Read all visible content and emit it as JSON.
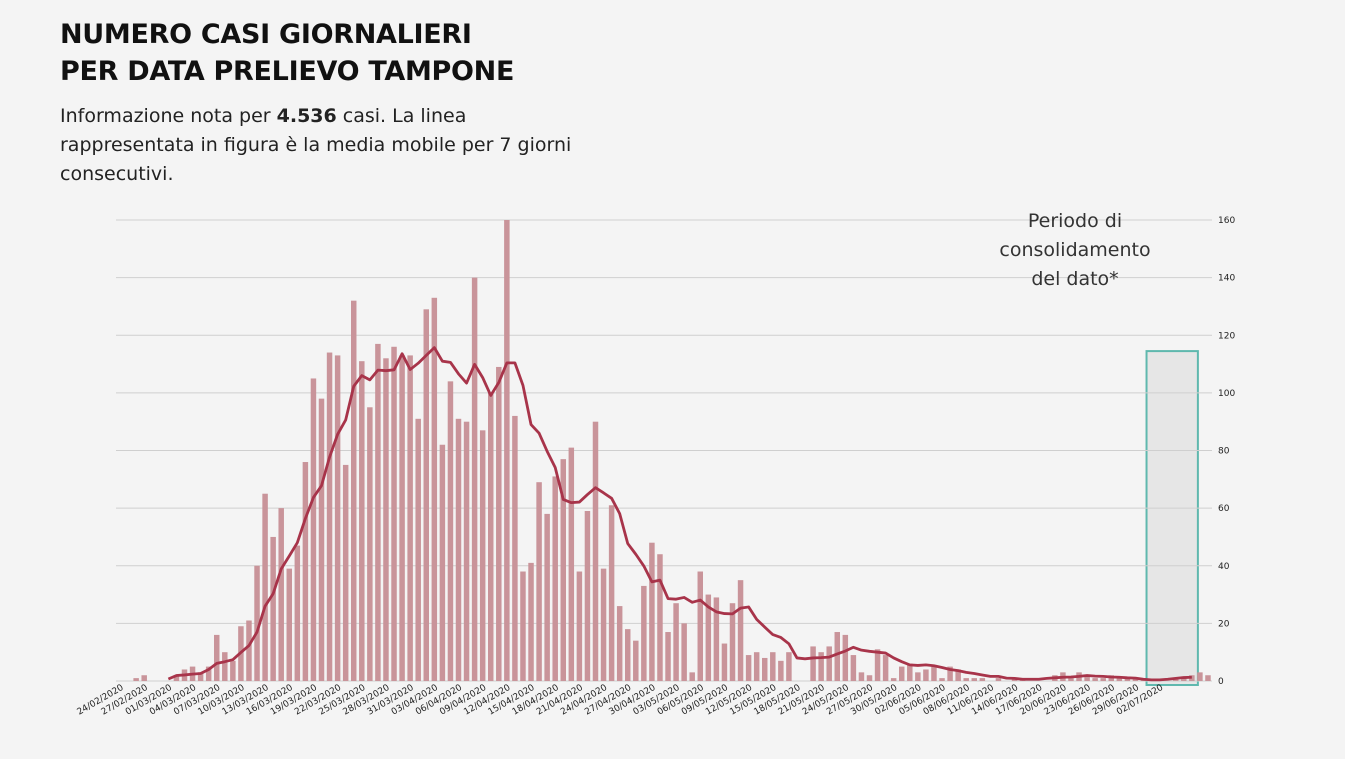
{
  "header": {
    "title_line1": "NUMERO CASI GIORNALIERI",
    "title_line2": "PER DATA PRELIEVO TAMPONE",
    "subtitle_pre": "Informazione nota per ",
    "subtitle_count": "4.536",
    "subtitle_post": "  casi. La linea rappresentata in figura è la media mobile per 7 giorni consecutivi."
  },
  "annotation": {
    "line1": "Periodo di",
    "line2": "consolidamento",
    "line3": "del dato*"
  },
  "colors": {
    "bar": "#c9949a",
    "line": "#a8344a",
    "grid": "#cfcfcf",
    "box_border": "#5fb8ae",
    "box_fill": "#e6e6e6"
  },
  "chart_data": {
    "type": "bar",
    "start_date": "24/02/2020",
    "x_tick_labels": [
      "24/02/2020",
      "27/02/2020",
      "01/03/2020",
      "04/03/2020",
      "07/03/2020",
      "10/03/2020",
      "13/03/2020",
      "16/03/2020",
      "19/03/2020",
      "22/03/2020",
      "25/03/2020",
      "28/03/2020",
      "31/03/2020",
      "03/04/2020",
      "06/04/2020",
      "09/04/2020",
      "12/04/2020",
      "15/04/2020",
      "18/04/2020",
      "21/04/2020",
      "24/04/2020",
      "27/04/2020",
      "30/04/2020",
      "03/05/2020",
      "06/05/2020",
      "09/05/2020",
      "12/05/2020",
      "15/05/2020",
      "18/05/2020",
      "21/05/2020",
      "24/05/2020",
      "27/05/2020",
      "30/05/2020",
      "02/06/2020",
      "05/06/2020",
      "08/06/2020",
      "11/06/2020",
      "14/06/2020",
      "17/06/2020",
      "20/06/2020",
      "23/06/2020",
      "26/06/2020",
      "29/06/2020",
      "02/07/2020"
    ],
    "y_ticks": [
      0,
      20,
      40,
      60,
      80,
      100,
      120,
      140,
      160
    ],
    "ylim": [
      0,
      160
    ],
    "y_axis_position": "right",
    "grid": true,
    "series": [
      {
        "type": "bar",
        "values": [
          0,
          0,
          1,
          2,
          0,
          0,
          0,
          2,
          4,
          5,
          3,
          5,
          16,
          10,
          7,
          19,
          21,
          40,
          65,
          50,
          60,
          39,
          47,
          76,
          105,
          98,
          114,
          113,
          75,
          132,
          111,
          95,
          117,
          112,
          116,
          113,
          113,
          91,
          129,
          133,
          82,
          104,
          91,
          90,
          140,
          87,
          100,
          109,
          160,
          92,
          38,
          41,
          69,
          58,
          71,
          77,
          81,
          38,
          59,
          90,
          39,
          61,
          26,
          18,
          14,
          33,
          48,
          44,
          17,
          27,
          20,
          3,
          38,
          30,
          29,
          13,
          27,
          35,
          9,
          10,
          8,
          10,
          7,
          10,
          0,
          0,
          12,
          10,
          12,
          17,
          16,
          9,
          3,
          2,
          11,
          9,
          1,
          5,
          6,
          3,
          4,
          5,
          1,
          5,
          4,
          1,
          1,
          1,
          0,
          1,
          0,
          1,
          1,
          0,
          0,
          0,
          2,
          3,
          1,
          3,
          2,
          1,
          1,
          2,
          1,
          1,
          1,
          1,
          0,
          0,
          0,
          1,
          1,
          2,
          3,
          2
        ]
      },
      {
        "type": "line",
        "values": [
          null,
          null,
          null,
          null,
          null,
          null,
          0.7,
          1.9,
          2.1,
          2.4,
          2.6,
          4.0,
          6.1,
          6.7,
          7.4,
          9.9,
          12.3,
          17.0,
          26.0,
          30.3,
          38.9,
          43.4,
          48.0,
          56.4,
          63.7,
          67.8,
          77.7,
          85.6,
          90.6,
          102.3,
          106.0,
          104.5,
          107.9,
          107.7,
          108.0,
          113.6,
          108.1,
          110.3,
          113.0,
          115.7,
          111.0,
          110.6,
          106.6,
          103.4,
          109.9,
          105.3,
          99.1,
          103.6,
          110.4,
          110.4,
          102.6,
          89.0,
          86.0,
          79.7,
          74.1,
          63.0,
          61.9,
          62.1,
          64.7,
          67.1,
          65.3,
          63.4,
          58.1,
          47.7,
          44.0,
          39.9,
          34.4,
          35.0,
          28.6,
          28.4,
          29.0,
          27.3,
          28.1,
          25.7,
          24.0,
          23.4,
          23.3,
          25.3,
          25.7,
          21.4,
          18.7,
          16.1,
          15.1,
          12.9,
          8.0,
          7.7,
          8.0,
          8.1,
          8.3,
          9.4,
          10.4,
          11.7,
          10.7,
          10.3,
          10.0,
          9.7,
          8.0,
          6.7,
          5.6,
          5.4,
          5.6,
          5.3,
          4.7,
          4.0,
          3.6,
          3.0,
          2.6,
          2.1,
          1.6,
          1.6,
          1.0,
          0.9,
          0.6,
          0.6,
          0.6,
          0.9,
          1.1,
          1.3,
          1.4,
          1.6,
          1.9,
          1.7,
          1.6,
          1.4,
          1.3,
          1.1,
          1.0,
          0.6,
          0.4,
          0.4,
          0.6,
          0.9,
          1.2,
          1.3
        ]
      }
    ],
    "highlight_box": {
      "from_date": "01/07/2020",
      "to_date": "06/07/2020",
      "label": "Periodo di consolidamento del dato*"
    }
  }
}
